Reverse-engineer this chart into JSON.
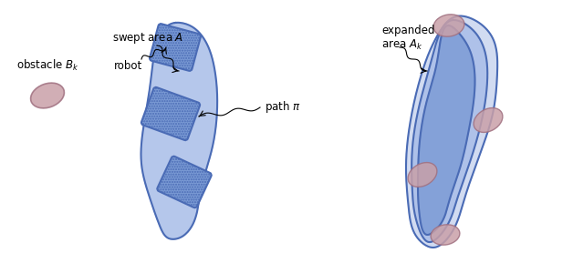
{
  "bg_color": "#ffffff",
  "swept_color_fill": "#a8bde8",
  "swept_color_edge": "#4a6bb5",
  "robot_fill": "#7a9ad4",
  "robot_hatch_color": "#5577cc",
  "obstacle_fill": "#c9a0a8",
  "obstacle_edge": "#a07080",
  "expanded_outer_fill": "#ccd8f0",
  "expanded_inner_fill": "#a8bde8",
  "expanded_innermost_fill": "#7a9ad4",
  "text_color": "#000000",
  "label_swept": "swept area $A$",
  "label_expanded": "expanded\narea $A_k$",
  "label_path": "path $\\pi$",
  "label_robot": "robot",
  "label_obstacle": "obstacle $B_k$"
}
